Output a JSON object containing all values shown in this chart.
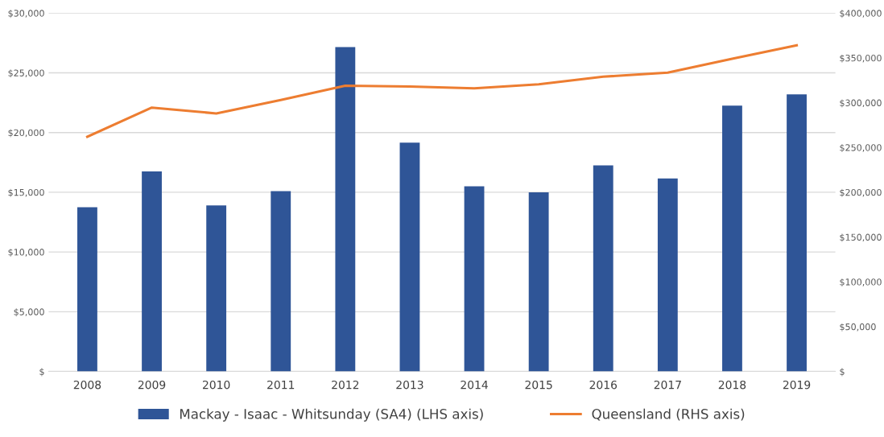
{
  "chart_data": {
    "type": "bar",
    "categories": [
      "2008",
      "2009",
      "2010",
      "2011",
      "2012",
      "2013",
      "2014",
      "2015",
      "2016",
      "2017",
      "2018",
      "2019"
    ],
    "series": [
      {
        "name": "Mackay - Isaac - Whitsunday (SA4) (LHS axis)",
        "color": "#2f5597",
        "values": [
          13750,
          16750,
          13900,
          15100,
          27150,
          19150,
          15500,
          15000,
          17250,
          16150,
          22250,
          23200
        ]
      },
      {
        "name": "Queensland (RHS axis)",
        "type": "line",
        "axis": "y2",
        "color": "#ed7d31",
        "values": [
          262000,
          294500,
          288000,
          303000,
          319000,
          318000,
          316000,
          320500,
          329000,
          333500,
          349000,
          364000
        ]
      }
    ],
    "ylim": [
      0,
      30000
    ],
    "yticks": [
      {
        "value": 0,
        "label": "$"
      },
      {
        "value": 5000,
        "label": "$5,000"
      },
      {
        "value": 10000,
        "label": "$10,000"
      },
      {
        "value": 15000,
        "label": "$15,000"
      },
      {
        "value": 20000,
        "label": "$20,000"
      },
      {
        "value": 25000,
        "label": "$25,000"
      },
      {
        "value": 30000,
        "label": "$30,000"
      }
    ],
    "y2lim": [
      0,
      400000
    ],
    "y2ticks": [
      {
        "value": 0,
        "label": "$"
      },
      {
        "value": 50000,
        "label": "$50,000"
      },
      {
        "value": 100000,
        "label": "$100,000"
      },
      {
        "value": 150000,
        "label": "$150,000"
      },
      {
        "value": 200000,
        "label": "$200,000"
      },
      {
        "value": 250000,
        "label": "$250,000"
      },
      {
        "value": 300000,
        "label": "$300,000"
      },
      {
        "value": 350000,
        "label": "$350,000"
      },
      {
        "value": 400000,
        "label": "$400,000"
      }
    ],
    "grid": "y",
    "legend": "bottom",
    "marker": "none",
    "line_style": "solid"
  }
}
